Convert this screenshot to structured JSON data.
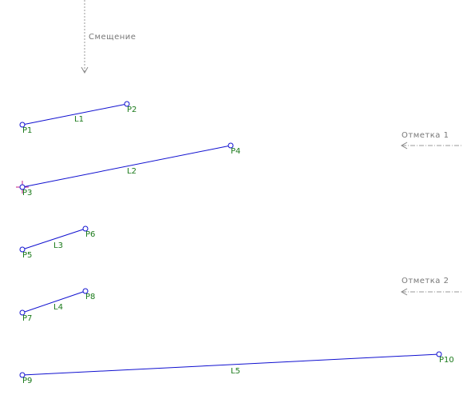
{
  "annotations": {
    "offset": "Смещение",
    "mark1": "Отметка 1",
    "mark2": "Отметка 2"
  },
  "points": [
    "P1",
    "P2",
    "P3",
    "P4",
    "P5",
    "P6",
    "P7",
    "P8",
    "P9",
    "P10"
  ],
  "lines": [
    "L1",
    "L2",
    "L3",
    "L4",
    "L5"
  ]
}
